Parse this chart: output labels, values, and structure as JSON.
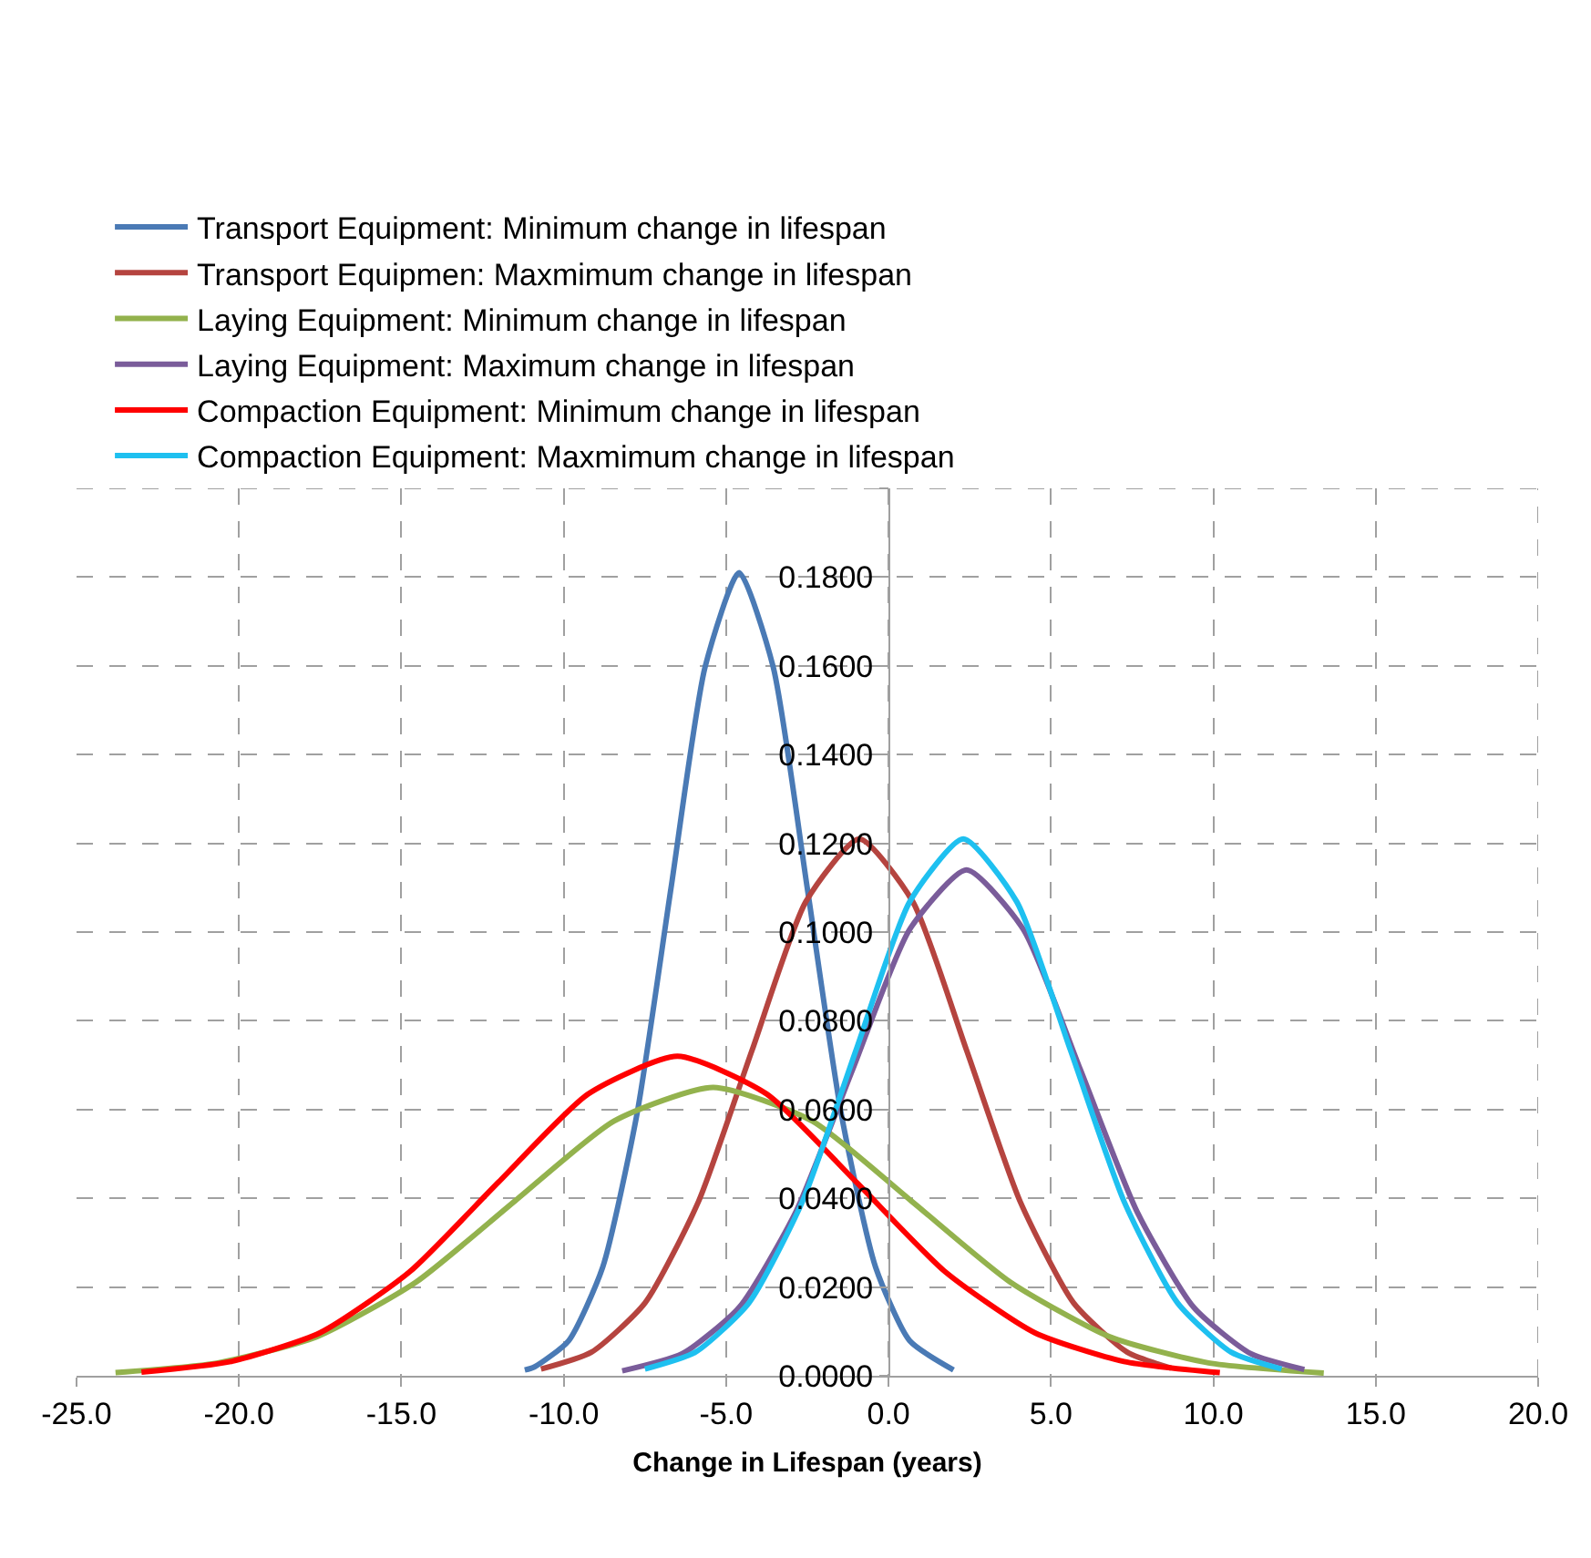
{
  "chart_data": {
    "type": "line",
    "xlabel": "Change in Lifespan (years)",
    "xlim": [
      -25,
      20
    ],
    "ylim": [
      0,
      0.2
    ],
    "xticks": [
      {
        "value": -25,
        "label": "-25.0"
      },
      {
        "value": -20,
        "label": "-20.0"
      },
      {
        "value": -15,
        "label": "-15.0"
      },
      {
        "value": -10,
        "label": "-10.0"
      },
      {
        "value": -5,
        "label": "-5.0"
      },
      {
        "value": 0,
        "label": "0.0"
      },
      {
        "value": 5,
        "label": "5.0"
      },
      {
        "value": 10,
        "label": "10.0"
      },
      {
        "value": 15,
        "label": "15.0"
      },
      {
        "value": 20,
        "label": "20.0"
      }
    ],
    "yticks": [
      {
        "value": 0,
        "label": "0.0000"
      },
      {
        "value": 0.02,
        "label": "0.0200"
      },
      {
        "value": 0.04,
        "label": "0.0400"
      },
      {
        "value": 0.06,
        "label": "0.0600"
      },
      {
        "value": 0.08,
        "label": "0.0800"
      },
      {
        "value": 0.1,
        "label": "0.1000"
      },
      {
        "value": 0.12,
        "label": "0.1200"
      },
      {
        "value": 0.14,
        "label": "0.1400"
      },
      {
        "value": 0.16,
        "label": "0.1600"
      },
      {
        "value": 0.18,
        "label": "0.1800"
      },
      {
        "value": 0.2,
        "label": null
      }
    ],
    "grid": true,
    "legend": "top left",
    "marker": "none",
    "line_style": "solid",
    "series": [
      {
        "name": "Transport Equipment: Minimum change in lifespan",
        "color": "#4a7ab5",
        "x": [
          -11.2,
          -10.9,
          -9.85,
          -8.8,
          -7.75,
          -6.7,
          -5.65,
          -4.6,
          -3.55,
          -2.5,
          -1.45,
          -0.4,
          0.65,
          2.0
        ],
        "values": [
          0.0013,
          0.002,
          0.0079,
          0.0245,
          0.0588,
          0.1098,
          0.1597,
          0.181,
          0.1597,
          0.1098,
          0.0588,
          0.0245,
          0.0079,
          0.0013
        ]
      },
      {
        "name": "Transport Equipmen: Maxmimum change in lifespan",
        "color": "#b5443f",
        "x": [
          -10.7,
          -9.15,
          -7.5,
          -5.85,
          -4.2,
          -2.55,
          -0.9,
          0.75,
          2.4,
          4.05,
          5.7,
          7.35,
          8.7
        ],
        "values": [
          0.0015,
          0.0053,
          0.0164,
          0.0393,
          0.0734,
          0.1068,
          0.121,
          0.1068,
          0.0734,
          0.0393,
          0.0164,
          0.0053,
          0.0017
        ]
      },
      {
        "name": "Laying Equipment: Minimum change in lifespan",
        "color": "#93b24d",
        "x": [
          -23.8,
          -20.65,
          -17.6,
          -14.55,
          -11.5,
          -8.45,
          -5.4,
          -2.35,
          0.7,
          3.75,
          6.8,
          9.85,
          13.4
        ],
        "values": [
          0.0007,
          0.0029,
          0.0088,
          0.0211,
          0.0394,
          0.0574,
          0.065,
          0.0574,
          0.0394,
          0.0211,
          0.0088,
          0.0029,
          0.0006
        ]
      },
      {
        "name": "Laying Equipment: Maximum change in lifespan",
        "color": "#7a5c9a",
        "x": [
          -8.2,
          -6.35,
          -4.6,
          -2.85,
          -1.1,
          0.65,
          2.4,
          4.15,
          5.9,
          7.65,
          9.4,
          11.15,
          12.8
        ],
        "values": [
          0.0011,
          0.005,
          0.0154,
          0.037,
          0.0691,
          0.1006,
          0.114,
          0.1006,
          0.0691,
          0.037,
          0.0154,
          0.005,
          0.0014
        ]
      },
      {
        "name": "Compaction Equipment: Minimum change in lifespan",
        "color": "#ff0000",
        "x": [
          -23,
          -20.25,
          -17.5,
          -14.75,
          -12,
          -9.25,
          -6.5,
          -3.75,
          -1,
          1.75,
          4.5,
          7.25,
          10.2
        ],
        "values": [
          0.0008,
          0.0032,
          0.0097,
          0.0234,
          0.0437,
          0.0635,
          0.072,
          0.0635,
          0.0437,
          0.0234,
          0.0097,
          0.0032,
          0.0007
        ]
      },
      {
        "name": "Compaction Equipment: Maxmimum change in lifespan",
        "color": "#1ec0f0",
        "x": [
          -7.5,
          -5.95,
          -4.3,
          -2.65,
          -1,
          0.65,
          2.3,
          3.95,
          5.6,
          7.25,
          8.9,
          10.55,
          12.1
        ],
        "values": [
          0.0015,
          0.0053,
          0.0164,
          0.0393,
          0.0734,
          0.1068,
          0.121,
          0.1068,
          0.0734,
          0.0393,
          0.0164,
          0.0053,
          0.0015
        ]
      }
    ]
  }
}
